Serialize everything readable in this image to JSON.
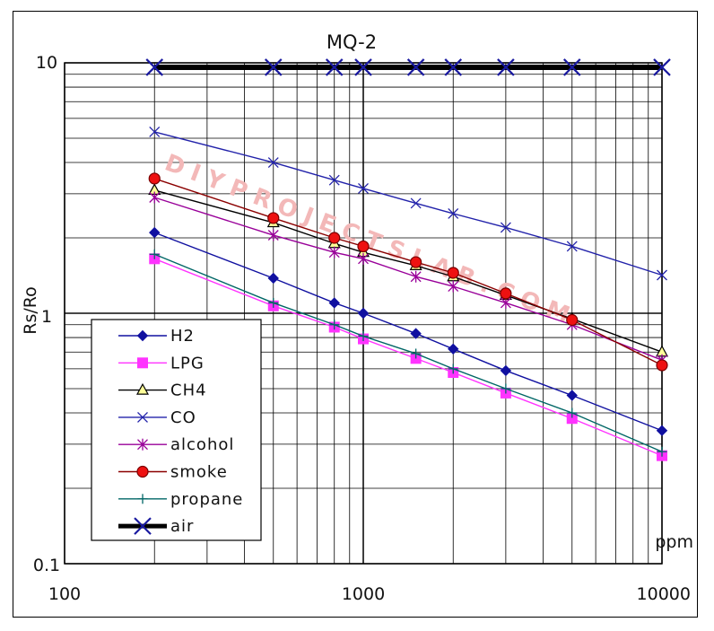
{
  "chart_data": {
    "type": "line",
    "title": "MQ-2",
    "xlabel": "ppm",
    "ylabel": "Rs/Ro",
    "xscale": "log",
    "yscale": "log",
    "xlim": [
      100,
      10000
    ],
    "ylim": [
      0.1,
      10
    ],
    "x_tick_labels": [
      "100",
      "1000",
      "10000"
    ],
    "y_tick_labels": [
      "10",
      "1",
      "0.1"
    ],
    "grid": true,
    "watermark": "DIYPROJECTSLAB.COM",
    "legend_position": "bottom-left",
    "series": [
      {
        "name": "H2",
        "color": "#1010a0",
        "marker": "diamond",
        "x": [
          200,
          500,
          800,
          1000,
          1500,
          2000,
          3000,
          5000,
          10000
        ],
        "y": [
          2.1,
          1.38,
          1.1,
          1.0,
          0.83,
          0.72,
          0.59,
          0.47,
          0.34
        ]
      },
      {
        "name": "LPG",
        "color": "#ff33ff",
        "marker": "square",
        "x": [
          200,
          500,
          800,
          1000,
          1500,
          2000,
          3000,
          5000,
          10000
        ],
        "y": [
          1.65,
          1.07,
          0.88,
          0.79,
          0.66,
          0.58,
          0.48,
          0.38,
          0.27
        ]
      },
      {
        "name": "CH4",
        "color": "#000000",
        "marker": "triangle",
        "x": [
          200,
          500,
          800,
          1000,
          1500,
          2000,
          3000,
          5000,
          10000
        ],
        "y": [
          3.1,
          2.3,
          1.9,
          1.75,
          1.55,
          1.4,
          1.18,
          0.95,
          0.7
        ]
      },
      {
        "name": "CO",
        "color": "#2222aa",
        "marker": "x",
        "x": [
          200,
          500,
          800,
          1000,
          1500,
          2000,
          3000,
          5000,
          10000
        ],
        "y": [
          5.3,
          4.0,
          3.4,
          3.15,
          2.75,
          2.5,
          2.2,
          1.85,
          1.42
        ]
      },
      {
        "name": "alcohol",
        "color": "#990099",
        "marker": "star",
        "x": [
          200,
          500,
          800,
          1000,
          1500,
          2000,
          3000,
          5000,
          10000
        ],
        "y": [
          2.9,
          2.05,
          1.75,
          1.65,
          1.4,
          1.28,
          1.1,
          0.9,
          0.65
        ]
      },
      {
        "name": "smoke",
        "color": "#8b0000",
        "marker": "circle",
        "x": [
          200,
          500,
          800,
          1000,
          1500,
          2000,
          3000,
          5000,
          10000
        ],
        "y": [
          3.45,
          2.4,
          2.0,
          1.85,
          1.6,
          1.45,
          1.2,
          0.94,
          0.62
        ]
      },
      {
        "name": "propane",
        "color": "#006666",
        "marker": "plus",
        "x": [
          200,
          500,
          800,
          1000,
          1500,
          2000,
          3000,
          5000,
          10000
        ],
        "y": [
          1.72,
          1.1,
          0.9,
          0.81,
          0.69,
          0.6,
          0.5,
          0.4,
          0.28
        ]
      },
      {
        "name": "air",
        "color": "#000000",
        "marker": "x-big",
        "x": [
          200,
          500,
          800,
          1000,
          1500,
          2000,
          3000,
          5000,
          10000
        ],
        "y": [
          9.6,
          9.6,
          9.6,
          9.6,
          9.6,
          9.6,
          9.6,
          9.6,
          9.6
        ]
      }
    ]
  }
}
